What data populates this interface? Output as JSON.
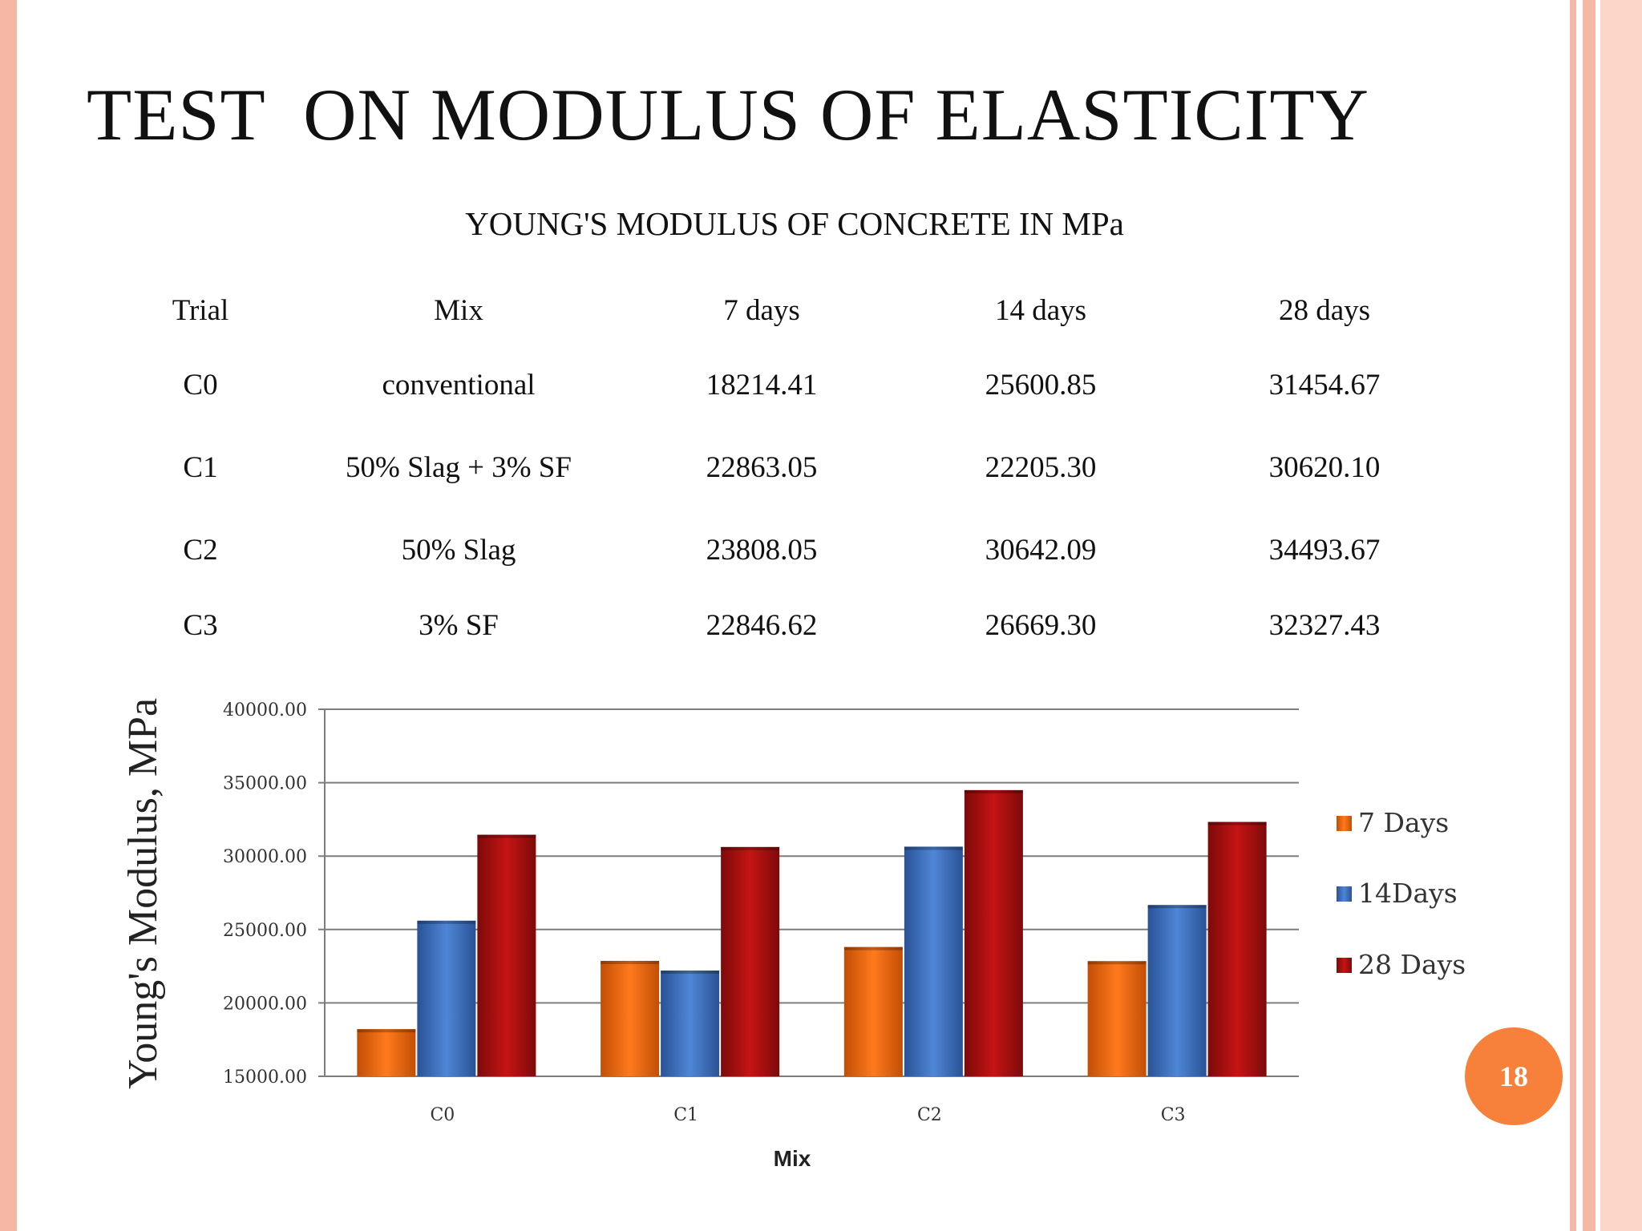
{
  "slide": {
    "title": "TEST  ON MODULUS OF ELASTICITY",
    "page_number": "18"
  },
  "table": {
    "caption": "YOUNG'S MODULUS OF CONCRETE IN MPa",
    "headers": [
      "Trial",
      "Mix",
      "7 days",
      "14 days",
      "28 days"
    ],
    "rows": [
      [
        "C0",
        "conventional",
        "18214.41",
        "25600.85",
        "31454.67"
      ],
      [
        "C1",
        "50% Slag + 3% SF",
        "22863.05",
        "22205.30",
        "30620.10"
      ],
      [
        "C2",
        "50% Slag",
        "23808.05",
        "30642.09",
        "34493.67"
      ],
      [
        "C3",
        "3% SF",
        "22846.62",
        "26669.30",
        "32327.43"
      ]
    ]
  },
  "chart_data": {
    "type": "bar",
    "categories": [
      "C0",
      "C1",
      "C2",
      "C3"
    ],
    "series": [
      {
        "name": "7 Days",
        "values": [
          18214.41,
          22863.05,
          23808.05,
          22846.62
        ],
        "color": "#e8650f"
      },
      {
        "name": "14Days",
        "values": [
          25600.85,
          22205.3,
          30642.09,
          26669.3
        ],
        "color": "#3c6fc0"
      },
      {
        "name": "28 Days",
        "values": [
          31454.67,
          30620.1,
          34493.67,
          32327.43
        ],
        "color": "#b01010"
      }
    ],
    "ylim": [
      15000,
      40000
    ],
    "yticks": [
      "15000.00",
      "20000.00",
      "25000.00",
      "30000.00",
      "35000.00",
      "40000.00"
    ],
    "ylabel": "Young's Modulus, MPa",
    "xlabel": "Mix",
    "grid": true,
    "legend": "right"
  },
  "colors": {
    "border": "#f6b8a4",
    "badge": "#f7813a"
  }
}
